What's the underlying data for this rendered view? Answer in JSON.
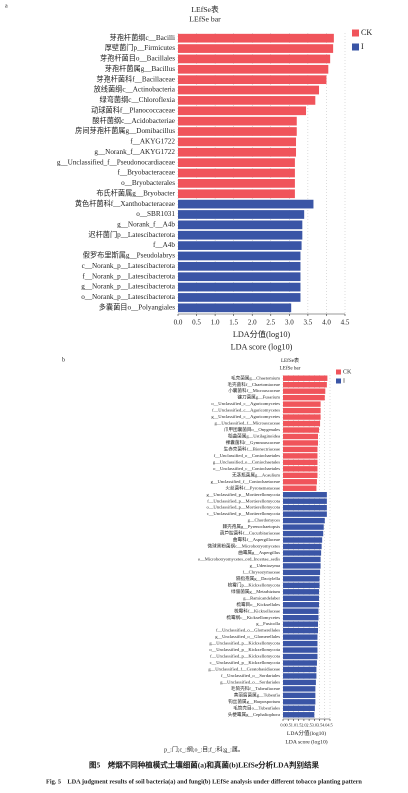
{
  "chart_data": [
    {
      "type": "bar",
      "orientation": "horizontal",
      "panel": "a",
      "title": "LEfSe表",
      "subtitle": "LEfSe bar",
      "categories": [
        "芽孢杆菌纲c__Bacilli",
        "厚壁菌门p__Firmicutes",
        "芽孢杆菌目o__Bacillales",
        "芽孢杆菌属g__Bacillus",
        "芽孢杆菌科f__Bacillaceae",
        "放线菌纲c__Actinobacteria",
        "绿弯菌纲c__Chloroflexia",
        "动球菌科f__Planococcaceae",
        "酸杆菌纲c__Acidobacteriae",
        "房间芽孢杆菌属g__Domibacillus",
        "f__AKYG1722",
        "g__Norank_f__AKYG1722",
        "g__Unclassified_f__Pseudonocardiaceae",
        "f__Bryobacteraceae",
        "o__Bryobacterales",
        "布氏杆菌属g__Bryobacter",
        "黄色杆菌科f__Xanthobacteraceae",
        "o__SBR1031",
        "g__Norank_f__A4b",
        "迟杆菌门p__Latescibacterota",
        "f__A4b",
        "假罗布里斯属g__Pseudolabrys",
        "c__Norank_p__Latescibacterota",
        "f__Norank_p__Latescibacterota",
        "g__Norank_p__Latescibacterota",
        "o__Norank_p__Latescibacterota",
        "多囊菌目o__Polyangiales"
      ],
      "series": [
        {
          "name": "CK",
          "color": "#f0545b",
          "values": [
            4.2,
            4.18,
            4.1,
            4.05,
            4.0,
            3.8,
            3.7,
            3.45,
            3.2,
            3.2,
            3.18,
            3.18,
            3.15,
            3.15,
            3.15,
            3.15,
            null,
            null,
            null,
            null,
            null,
            null,
            null,
            null,
            null,
            null,
            null
          ]
        },
        {
          "name": "I",
          "color": "#3a55a6",
          "values": [
            null,
            null,
            null,
            null,
            null,
            null,
            null,
            null,
            null,
            null,
            null,
            null,
            null,
            null,
            null,
            null,
            3.65,
            3.4,
            3.35,
            3.35,
            3.33,
            3.3,
            3.3,
            3.3,
            3.3,
            3.3,
            3.05
          ]
        }
      ],
      "xlim": [
        0,
        4.5
      ],
      "xticks": [
        {
          "value": 0,
          "label": "0.0"
        },
        0.5,
        {
          "value": 1,
          "label": "1.0"
        },
        1.5,
        {
          "value": 2,
          "label": "2.0"
        },
        2.5,
        {
          "value": 3,
          "label": "3.0"
        },
        3.5,
        {
          "value": 4,
          "label": "4.0"
        },
        4.5
      ],
      "xlabel": "LDA分值(log10)",
      "xlabel_en": "LDA score (log10)",
      "grid": true,
      "legend": "upper right"
    },
    {
      "type": "bar",
      "orientation": "horizontal",
      "panel": "b",
      "title": "LEfSe表",
      "subtitle": "LEfSe bar",
      "categories": [
        "毛壳菌属g__Chaetomium",
        "毛壳菌科f__Chaetomiaceae",
        "小囊菌科f__Microascaceae",
        "镰刀菌属g__Fusarium",
        "o__Unclassified_c__Agaricomycetes",
        "f__Unclassified_c__Agaricomycetes",
        "g__Unclassified_c__Agaricomycetes",
        "g__Unclassified_f__Microascaceae",
        "爪甲团囊菌目o__Onygenales",
        "稻曲菌属g__Ustilaginoidea",
        "裸囊菌科f__Gymnoascaceae",
        "生赤壳菌科f__Bionectriaceae",
        "f__Unclassified_o__Coniochaetales",
        "g__Unclassified_o__Coniochaetales",
        "o__Unclassified_c__Coniochaetales",
        "无茎瓶菌属g__Acaulium",
        "g__Unclassified_f__Coniochaetaceae",
        "火丝菌科f__Pyronemataceae",
        "g__Unclassified_p__Mortierellomycota",
        "f__Unclassified_p__Mortierellomycota",
        "o__Unclassified_p__Mortierellomycota",
        "c__Unclassified_p__Mortierellomycota",
        "g__Chordomyces",
        "棘壳孢属g__Pyrenochaetopsis",
        "葫芦腔菌科f__Cucurbitariaceae",
        "曲霉科f__Aspergillaceae",
        "微球黑粉菌纲c__Microbotryomycetes",
        "曲霉属g__Aspergillus",
        "o__Microbotryomycetes_ord_Incertae_sedis",
        "g__Udeniozyma",
        "f__Chrysozymaceae",
        "隔指孢属g__Dactylella",
        "梳霉门p__Kickxellomycota",
        "绿僵菌属g__Metarhizium",
        "g__Ramicandelaber",
        "梳霉目o__Kickxellales",
        "梳霉科f__Kickxellaceae",
        "梳霉纲c__Kickxellomycetes",
        "g__Fusicolla",
        "f__Unclassified_o__Glomerellales",
        "g__Unclassified_o__Glomerellales",
        "g__Unclassified_p__Kickxellomycota",
        "o__Unclassified_p__Kickxellomycota",
        "f__Unclassified_p__Kickxellomycota",
        "c__Unclassified_p__Kickxellomycota",
        "g__Unclassified_f__Ceratobasidiaceae",
        "f__Unclassified_o__Sordariales",
        "g__Unclassified_o__Sordariales",
        "毛筒壳科f__Tubeufiaceae",
        "黄丽腐菌属g__Tubeufia",
        "钩丝菌属g__Harposporium",
        "毛筒壳目o__Tubeufiales",
        "头梗霉属g__Cephaliophora"
      ],
      "series": [
        {
          "name": "CK",
          "color": "#f0545b",
          "values": [
            4.25,
            4.2,
            4.05,
            4.0,
            3.6,
            3.6,
            3.6,
            3.55,
            3.45,
            3.35,
            3.35,
            3.3,
            3.3,
            3.3,
            3.3,
            3.3,
            3.25,
            3.2,
            null,
            null,
            null,
            null,
            null,
            null,
            null,
            null,
            null,
            null,
            null,
            null,
            null,
            null,
            null,
            null,
            null,
            null,
            null,
            null,
            null,
            null,
            null,
            null,
            null,
            null,
            null,
            null,
            null,
            null,
            null,
            null,
            null,
            null,
            null
          ]
        },
        {
          "name": "I",
          "color": "#3a55a6",
          "values": [
            null,
            null,
            null,
            null,
            null,
            null,
            null,
            null,
            null,
            null,
            null,
            null,
            null,
            null,
            null,
            null,
            null,
            null,
            4.2,
            4.2,
            4.2,
            4.2,
            4.0,
            3.9,
            3.85,
            3.75,
            3.7,
            3.65,
            3.6,
            3.6,
            3.55,
            3.5,
            3.5,
            3.45,
            3.45,
            3.45,
            3.4,
            3.4,
            3.35,
            3.35,
            3.3,
            3.3,
            3.3,
            3.3,
            3.25,
            3.2,
            3.2,
            3.15,
            3.1,
            3.1,
            3.1,
            3.05,
            3.0
          ]
        }
      ],
      "xlim": [
        0,
        4.5
      ],
      "xticks": [
        {
          "value": 0,
          "label": "0.0"
        },
        0.5,
        {
          "value": 1,
          "label": "1.0"
        },
        1.5,
        {
          "value": 2,
          "label": "2.0"
        },
        2.5,
        {
          "value": 3,
          "label": "3.0"
        },
        3.5,
        {
          "value": 4,
          "label": "4.0"
        },
        4.5
      ],
      "xlabel": "LDA分值(log10)",
      "xlabel_en": "LDA score (log10)",
      "grid": true,
      "legend": "upper right"
    }
  ],
  "caption": {
    "note": "p_:门;c_:纲;o_:目;f_:科;g_:属。",
    "title_cn": "图5　烤烟不同种植模式土壤细菌(a)和真菌(b)LEfSe分析LDA判别结果",
    "title_en": "Fig. 5　LDA judgment results of soil bacteria(a) and fungi(b) LEfSe analysis under different tobacco planting pattern"
  }
}
